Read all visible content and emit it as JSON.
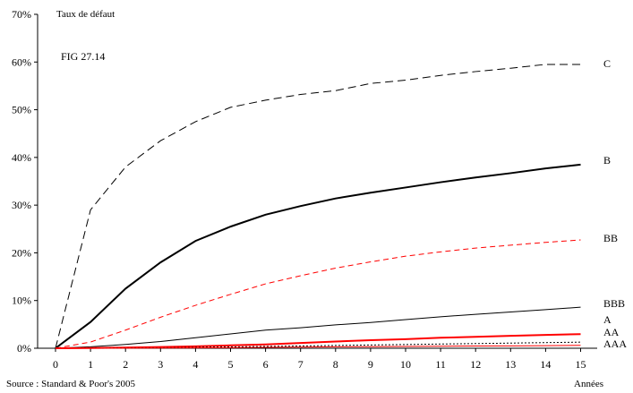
{
  "chart_data": {
    "type": "line",
    "title": "",
    "ylabel": "Taux de défaut",
    "xlabel": "Années",
    "annotation": "FIG 27.14",
    "source": "Source : Standard & Poor's 2005",
    "x": [
      0,
      1,
      2,
      3,
      4,
      5,
      6,
      7,
      8,
      9,
      10,
      11,
      12,
      13,
      14,
      15
    ],
    "x_tick_labels": [
      "0",
      "1",
      "2",
      "3",
      "4",
      "5",
      "6",
      "7",
      "8",
      "9",
      "10",
      "11",
      "12",
      "13",
      "14",
      "15"
    ],
    "y_tick_labels": [
      "0%",
      "10%",
      "20%",
      "30%",
      "40%",
      "50%",
      "60%",
      "70%"
    ],
    "ylim": [
      0,
      70
    ],
    "xlim": [
      0,
      15
    ],
    "grid": false,
    "legend": "labels-at-line-ends",
    "colors": {
      "black": "#000000",
      "red": "#ff0000"
    },
    "series": [
      {
        "name": "C",
        "values": [
          0,
          29,
          38,
          43.5,
          47.5,
          50.5,
          52,
          53.2,
          54,
          55.5,
          56.2,
          57.2,
          58,
          58.7,
          59.5,
          59.5
        ],
        "color": "#000000",
        "style": "long-dash",
        "width": 1
      },
      {
        "name": "B",
        "values": [
          0,
          5.5,
          12.5,
          18,
          22.5,
          25.5,
          28,
          29.8,
          31.4,
          32.6,
          33.7,
          34.8,
          35.8,
          36.7,
          37.7,
          38.5
        ],
        "color": "#000000",
        "style": "solid",
        "width": 2
      },
      {
        "name": "BB",
        "values": [
          0,
          1.3,
          3.8,
          6.5,
          9.0,
          11.3,
          13.5,
          15.2,
          16.8,
          18.1,
          19.3,
          20.2,
          21.0,
          21.6,
          22.2,
          22.7
        ],
        "color": "#ff0000",
        "style": "dash",
        "width": 1
      },
      {
        "name": "BBB",
        "values": [
          0,
          0.3,
          0.8,
          1.4,
          2.2,
          3.0,
          3.8,
          4.3,
          4.9,
          5.4,
          6.0,
          6.6,
          7.1,
          7.6,
          8.1,
          8.6
        ],
        "color": "#000000",
        "style": "solid",
        "width": 1
      },
      {
        "name": "A",
        "values": [
          0,
          0.05,
          0.15,
          0.25,
          0.4,
          0.6,
          0.8,
          1.1,
          1.4,
          1.7,
          1.9,
          2.2,
          2.4,
          2.6,
          2.8,
          2.95
        ],
        "color": "#ff0000",
        "style": "solid",
        "width": 2
      },
      {
        "name": "AA",
        "values": [
          0,
          0.02,
          0.05,
          0.1,
          0.18,
          0.28,
          0.38,
          0.48,
          0.58,
          0.68,
          0.78,
          0.88,
          0.98,
          1.08,
          1.18,
          1.28
        ],
        "color": "#000000",
        "style": "dot",
        "width": 1
      },
      {
        "name": "AAA",
        "values": [
          0,
          0.0,
          0.02,
          0.05,
          0.08,
          0.12,
          0.18,
          0.24,
          0.3,
          0.34,
          0.38,
          0.42,
          0.46,
          0.5,
          0.55,
          0.6
        ],
        "color": "#ff0000",
        "style": "solid",
        "width": 1
      }
    ]
  }
}
